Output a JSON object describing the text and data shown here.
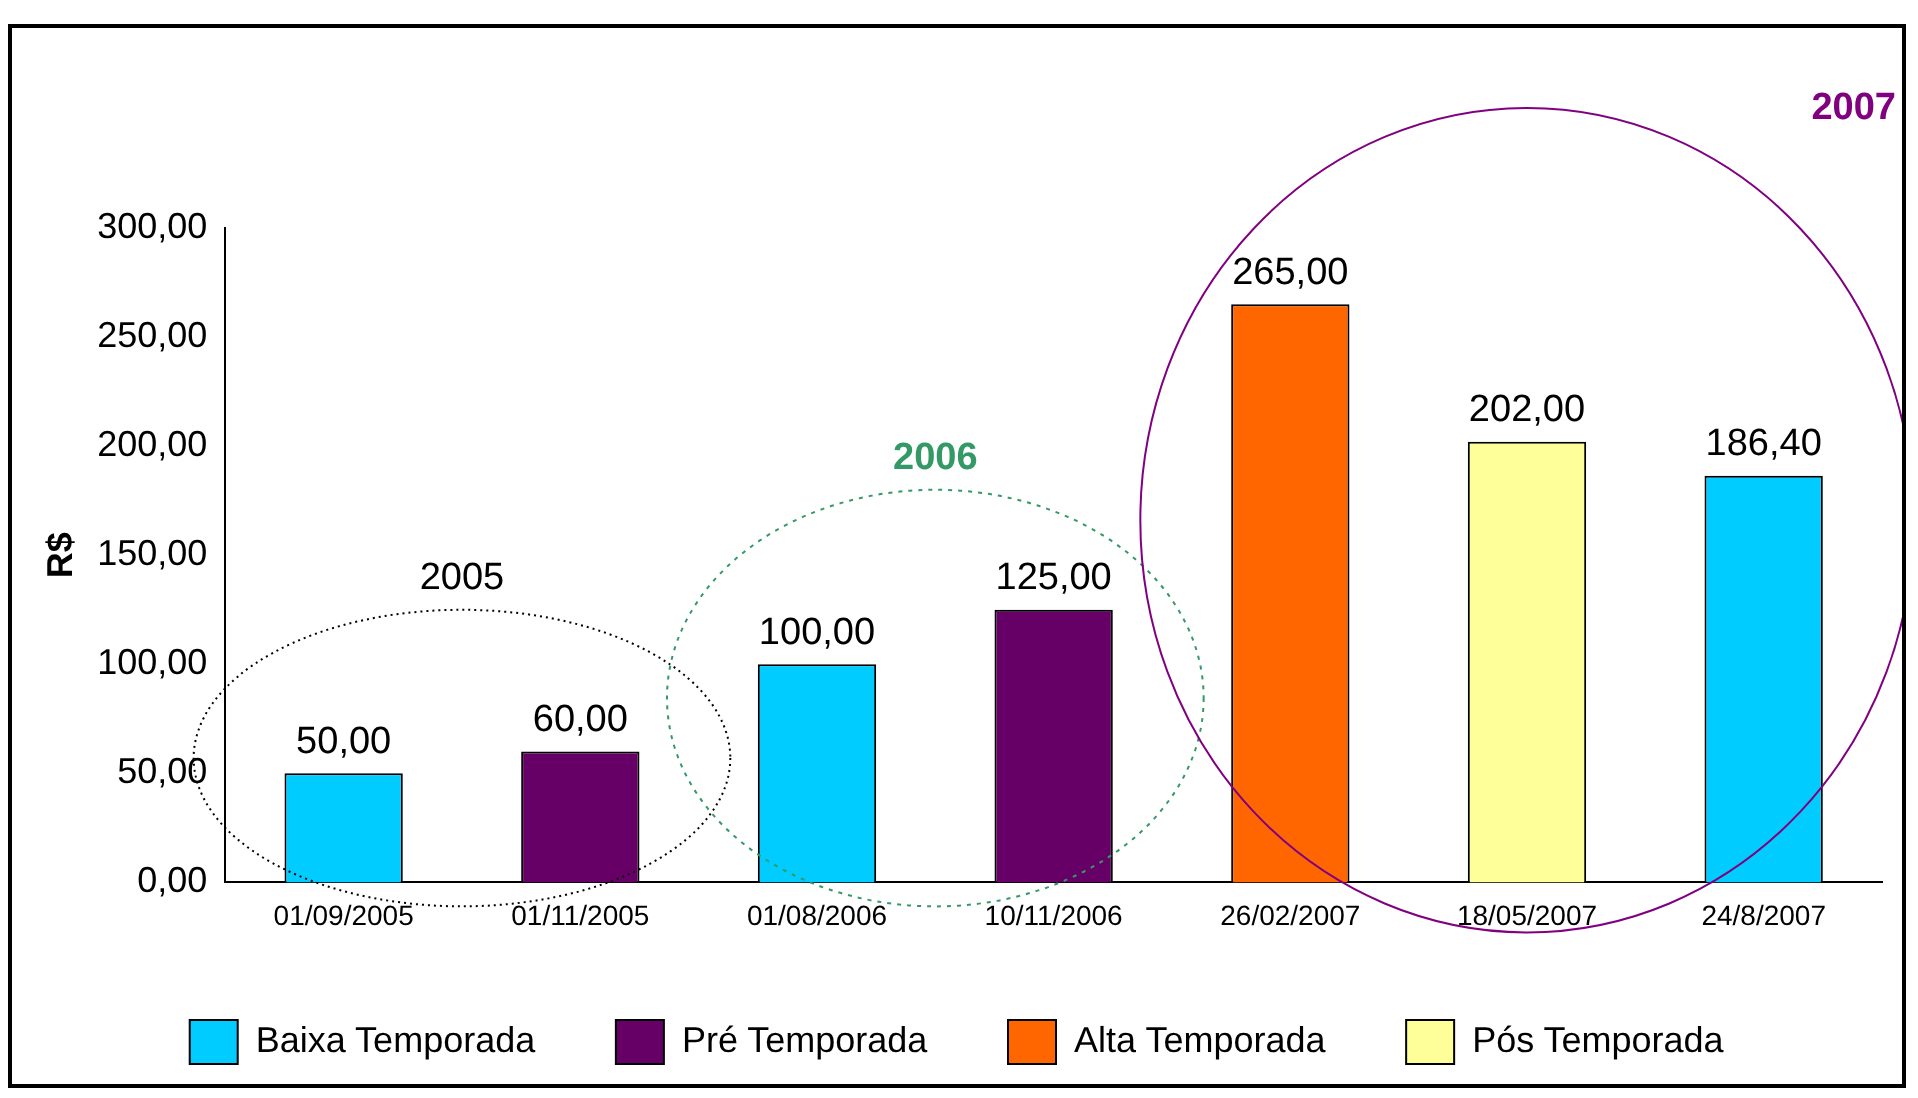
{
  "chart_data": {
    "type": "bar",
    "stacked": true,
    "ylabel": "R$",
    "categories": [
      "01/09/2005",
      "01/11/2005",
      "01/08/2006",
      "10/11/2006",
      "26/02/2007",
      "18/05/2007",
      "24/8/2007"
    ],
    "series": [
      {
        "name": "Baixa Temporada",
        "color": "#00ccff",
        "values": [
          50,
          null,
          100,
          null,
          null,
          null,
          186.4
        ],
        "value_labels": [
          "50,00",
          null,
          "100,00",
          null,
          null,
          null,
          "186,40"
        ]
      },
      {
        "name": "Pré Temporada",
        "color": "#660066",
        "values": [
          null,
          60,
          null,
          125,
          null,
          null,
          null
        ],
        "value_labels": [
          null,
          "60,00",
          null,
          "125,00",
          null,
          null,
          null
        ]
      },
      {
        "name": "Alta Temporada",
        "color": "#ff6600",
        "values": [
          null,
          null,
          null,
          null,
          265,
          null,
          null
        ],
        "value_labels": [
          null,
          null,
          null,
          null,
          "265,00",
          null,
          null
        ]
      },
      {
        "name": "Pós Temporada",
        "color": "#ffff99",
        "values": [
          null,
          null,
          null,
          null,
          null,
          202,
          null
        ],
        "value_labels": [
          null,
          null,
          null,
          null,
          null,
          "202,00",
          null
        ]
      }
    ],
    "ylim": [
      0,
      300
    ],
    "yticks": [
      {
        "value": 0,
        "label": "0,00"
      },
      {
        "value": 50,
        "label": "50,00"
      },
      {
        "value": 100,
        "label": "100,00"
      },
      {
        "value": 150,
        "label": "150,00"
      },
      {
        "value": 200,
        "label": "200,00"
      },
      {
        "value": 250,
        "label": "250,00"
      },
      {
        "value": 300,
        "label": "300,00"
      }
    ],
    "annotations": [
      "2005",
      "2006",
      "2007"
    ],
    "grid": false,
    "legend": "bottom"
  }
}
